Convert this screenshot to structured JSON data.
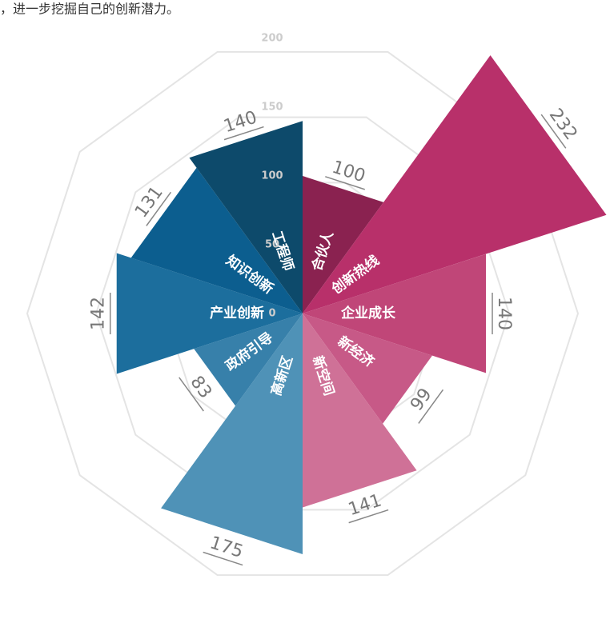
{
  "caption": "，进一步挖掘自己的创新潜力。",
  "chart_data": {
    "type": "polar-bar",
    "categories": [
      "合伙人",
      "创新热线",
      "企业成长",
      "新经济",
      "新空间",
      "高新区",
      "政府引导",
      "产业创新",
      "知识创新",
      "工程师"
    ],
    "values": [
      100,
      232,
      140,
      99,
      141,
      175,
      83,
      142,
      131,
      140
    ],
    "colors": [
      "#8a2250",
      "#b8306a",
      "#c04678",
      "#c75987",
      "#cf7197",
      "#4f92b7",
      "#3780aa",
      "#1c6e9d",
      "#0c5e8f",
      "#0d4a6b"
    ],
    "ylim": [
      0,
      200
    ],
    "yticks": [
      0,
      50,
      100,
      150,
      200
    ],
    "grid": true
  }
}
